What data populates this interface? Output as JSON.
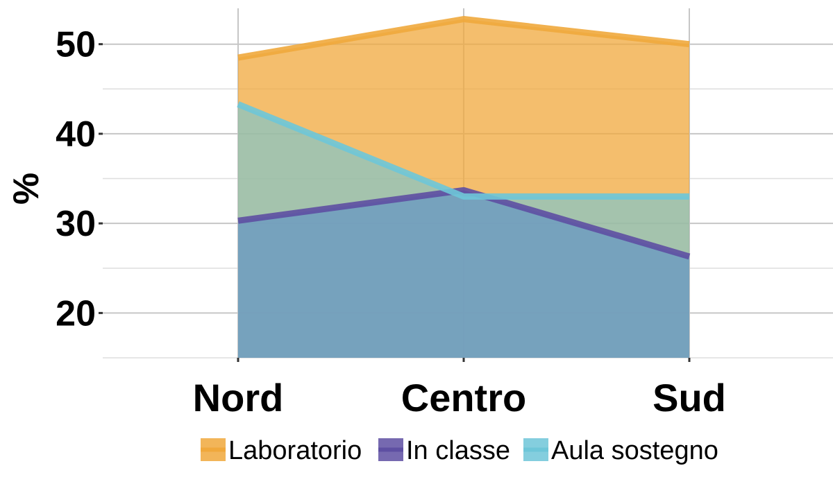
{
  "chart_data": {
    "type": "area",
    "categories": [
      "Nord",
      "Centro",
      "Sud"
    ],
    "ylabel": "%",
    "xlabel": "",
    "ylim": [
      15,
      54
    ],
    "yticks": [
      20,
      30,
      40,
      50
    ],
    "grid": true,
    "legend_position": "bottom",
    "series": [
      {
        "name": "Laboratorio",
        "values": [
          48.5,
          52.8,
          50.0
        ],
        "color": "#F0A83C"
      },
      {
        "name": "In classe",
        "values": [
          30.3,
          33.7,
          26.3
        ],
        "color": "#5E4FA2"
      },
      {
        "name": "Aula sostegno",
        "values": [
          43.3,
          33.0,
          33.0
        ],
        "color": "#6EC6D8"
      }
    ]
  }
}
